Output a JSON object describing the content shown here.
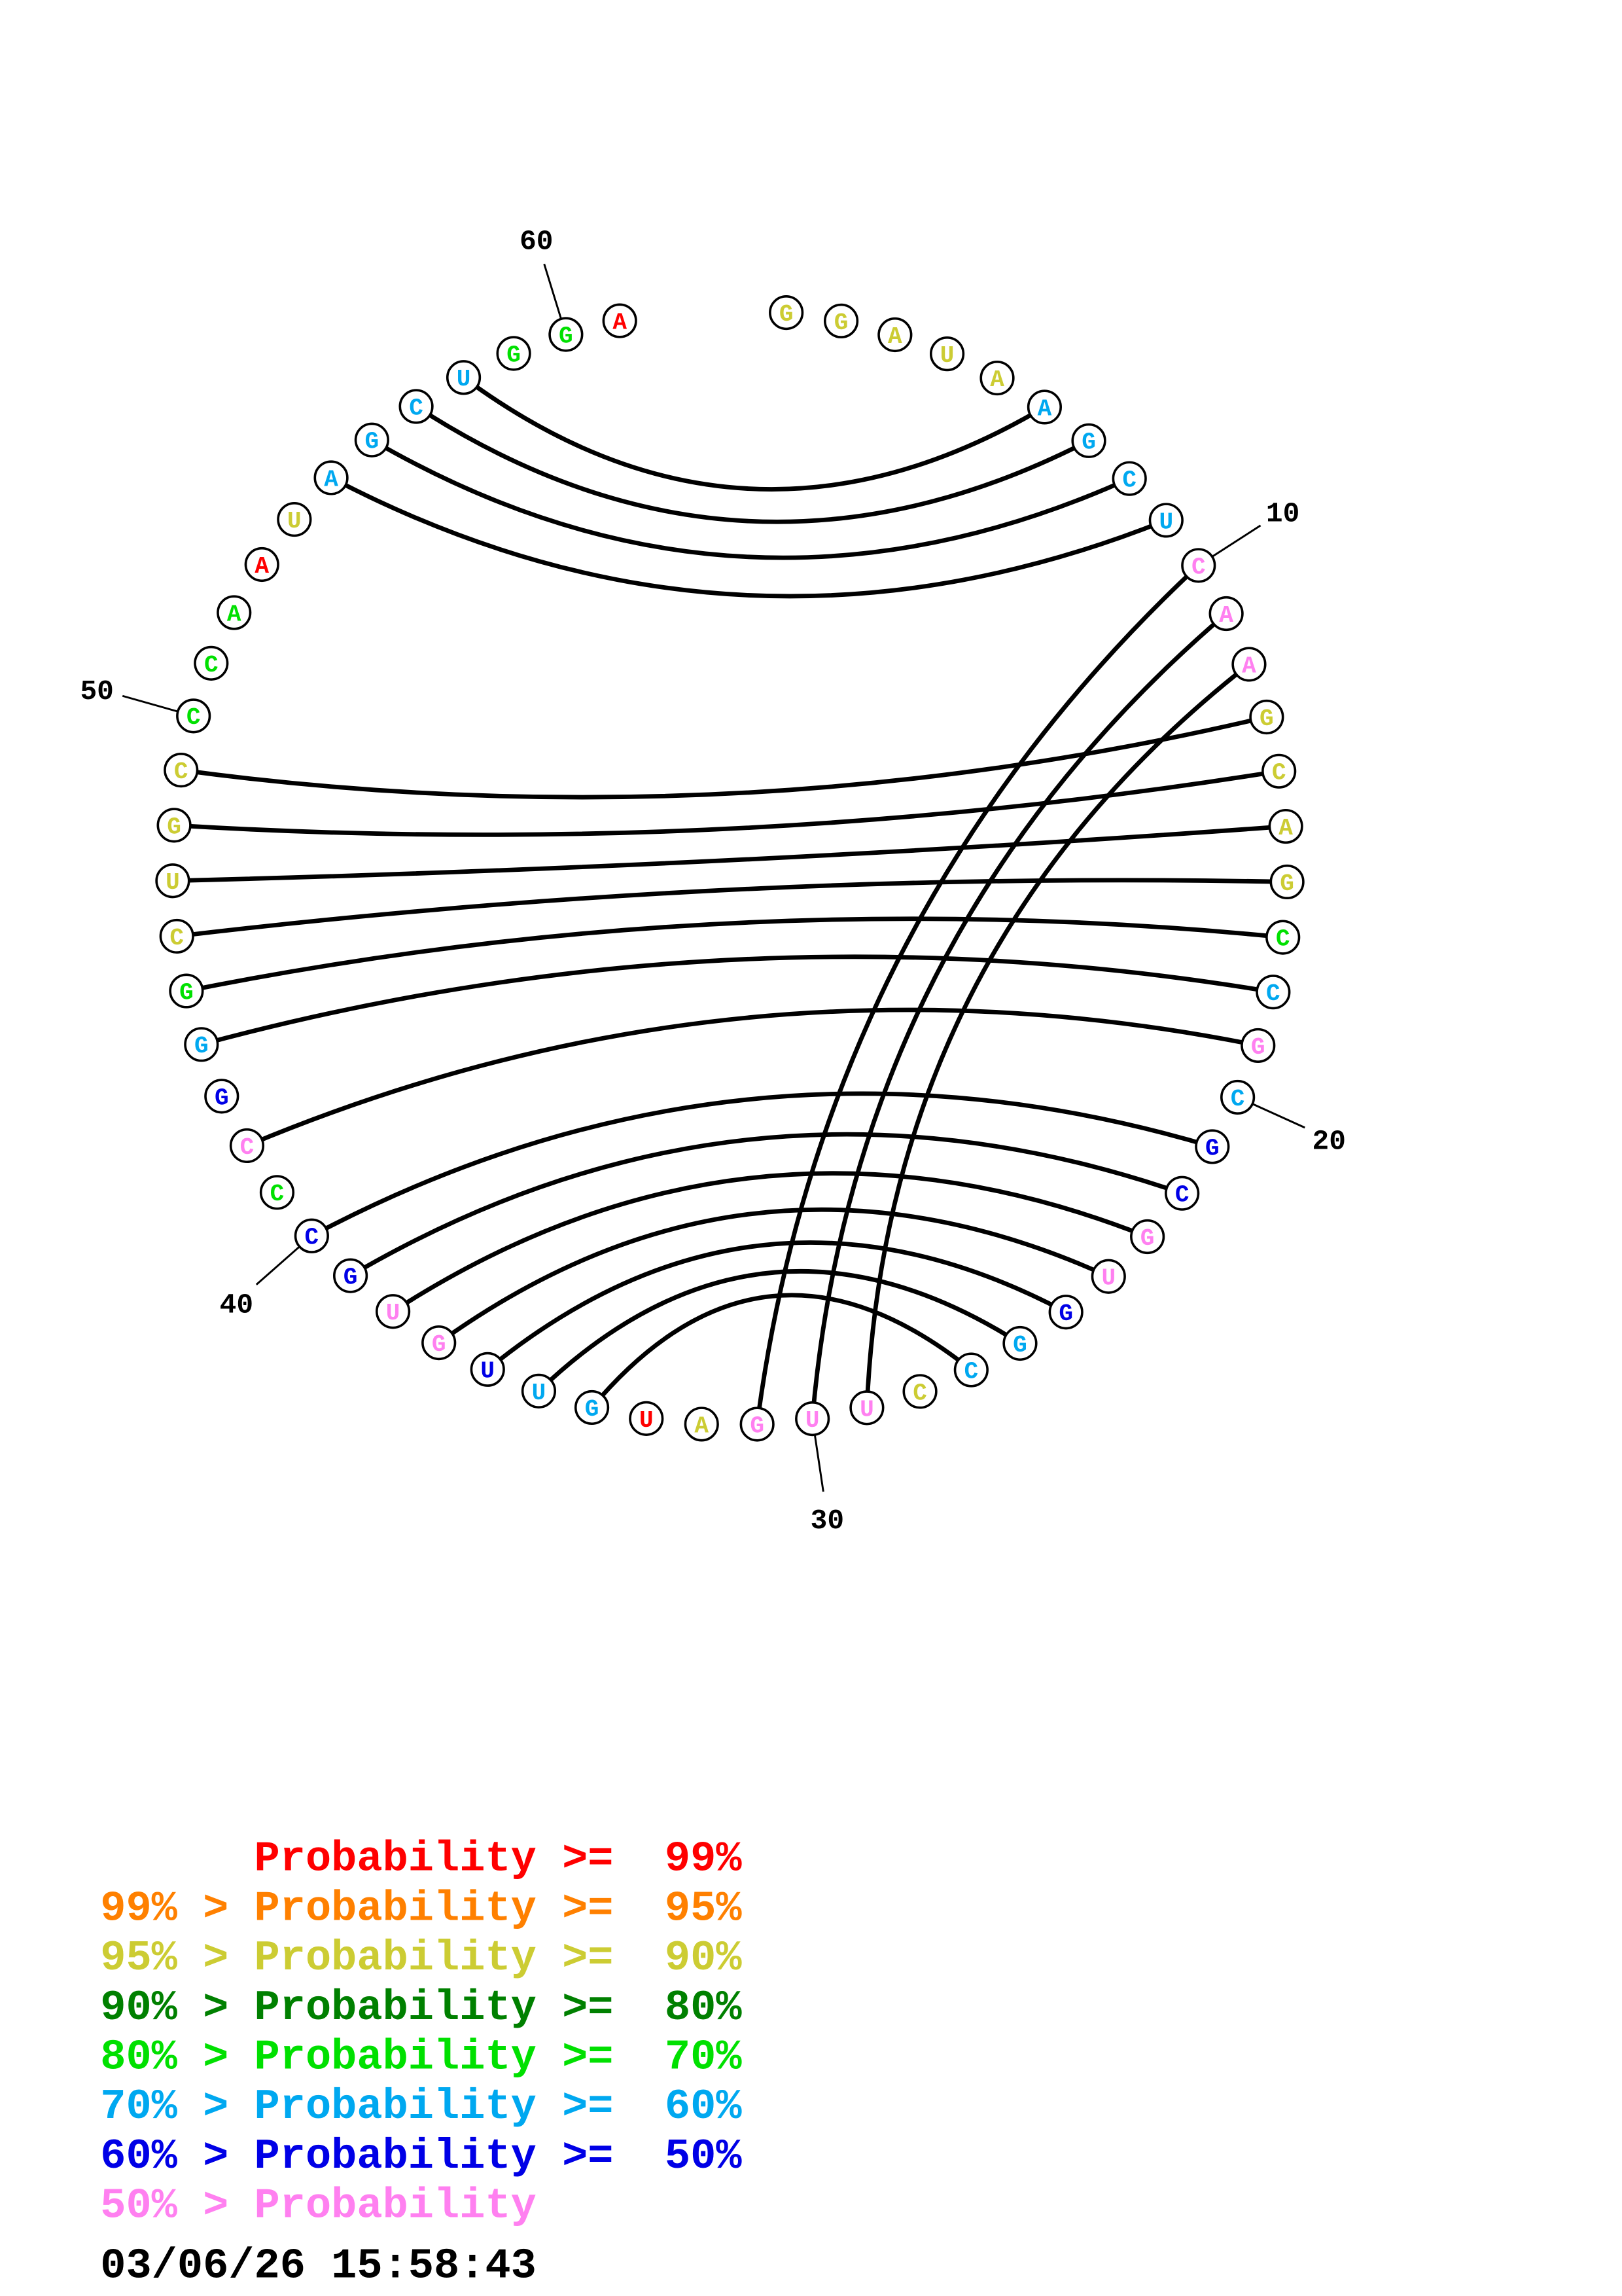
{
  "structure": {
    "sequence": "GGAUAAGCUCAAGCAGCCGCGCGUGGCCUUGAUGUUGUGCCCGGGCUGCCCAAUAGCUGGA",
    "probability_class": "yyyyyccccpppyyyygcpcbbppbccypppyrccbppbbgpbcgyyyygggryccccggr",
    "pairs": [
      [
        6,
        58
      ],
      [
        7,
        57
      ],
      [
        8,
        56
      ],
      [
        9,
        55
      ],
      [
        10,
        31
      ],
      [
        11,
        30
      ],
      [
        12,
        29
      ],
      [
        13,
        49
      ],
      [
        14,
        48
      ],
      [
        15,
        47
      ],
      [
        16,
        46
      ],
      [
        17,
        45
      ],
      [
        18,
        44
      ],
      [
        19,
        42
      ],
      [
        21,
        40
      ],
      [
        22,
        39
      ],
      [
        23,
        38
      ],
      [
        24,
        37
      ],
      [
        25,
        36
      ],
      [
        26,
        35
      ],
      [
        27,
        34
      ]
    ],
    "position_labels": [
      "10",
      "20",
      "30",
      "40",
      "50",
      "60"
    ]
  },
  "colors": {
    "r": "#ff0000",
    "o": "#ff8000",
    "y": "#cccc33",
    "d": "#008000",
    "g": "#00e000",
    "c": "#00a8f0",
    "b": "#0000e6",
    "p": "#ff80f0"
  },
  "legend": [
    {
      "text": "      Probability >=  99%",
      "color": "#ff0000"
    },
    {
      "text": "99% > Probability >=  95%",
      "color": "#ff8000"
    },
    {
      "text": "95% > Probability >=  90%",
      "color": "#cccc33"
    },
    {
      "text": "90% > Probability >=  80%",
      "color": "#008000"
    },
    {
      "text": "80% > Probability >=  70%",
      "color": "#00e000"
    },
    {
      "text": "70% > Probability >=  60%",
      "color": "#00a8f0"
    },
    {
      "text": "60% > Probability >=  50%",
      "color": "#0000e6"
    },
    {
      "text": "50% > Probability",
      "color": "#ff80f0"
    }
  ],
  "timestamp": "03/06/26 15:58:43"
}
